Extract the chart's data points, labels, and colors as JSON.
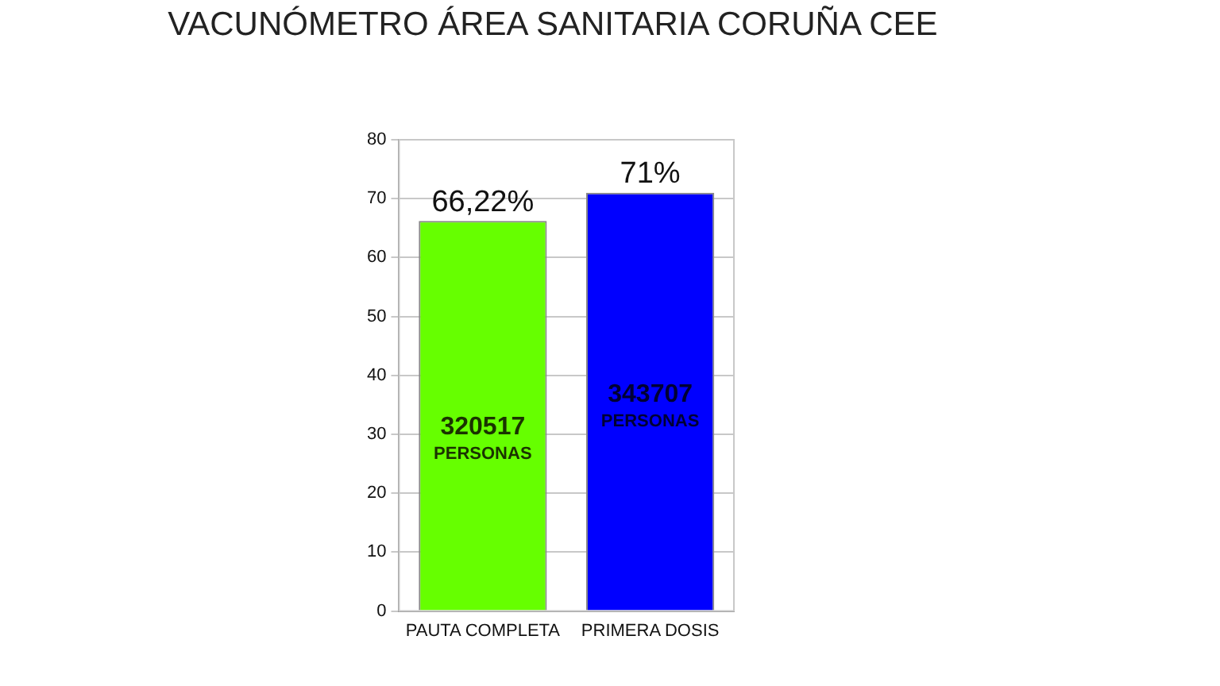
{
  "chart_data": {
    "type": "bar",
    "title": "VACUNÓMETRO ÁREA SANITARIA CORUÑA CEE",
    "categories": [
      "PAUTA COMPLETA",
      "PRIMERA DOSIS"
    ],
    "values": [
      66.22,
      71
    ],
    "colors": [
      "#66ff00",
      "#0000ff"
    ],
    "value_labels": [
      "66,22%",
      "71%"
    ],
    "ylim": [
      0,
      80
    ],
    "yticks": [
      0,
      10,
      20,
      30,
      40,
      50,
      60,
      70,
      80
    ],
    "grid": "y",
    "legend": false,
    "annotations": [
      "320517",
      "PERSONAS",
      "343707",
      "PERSONAS"
    ]
  }
}
